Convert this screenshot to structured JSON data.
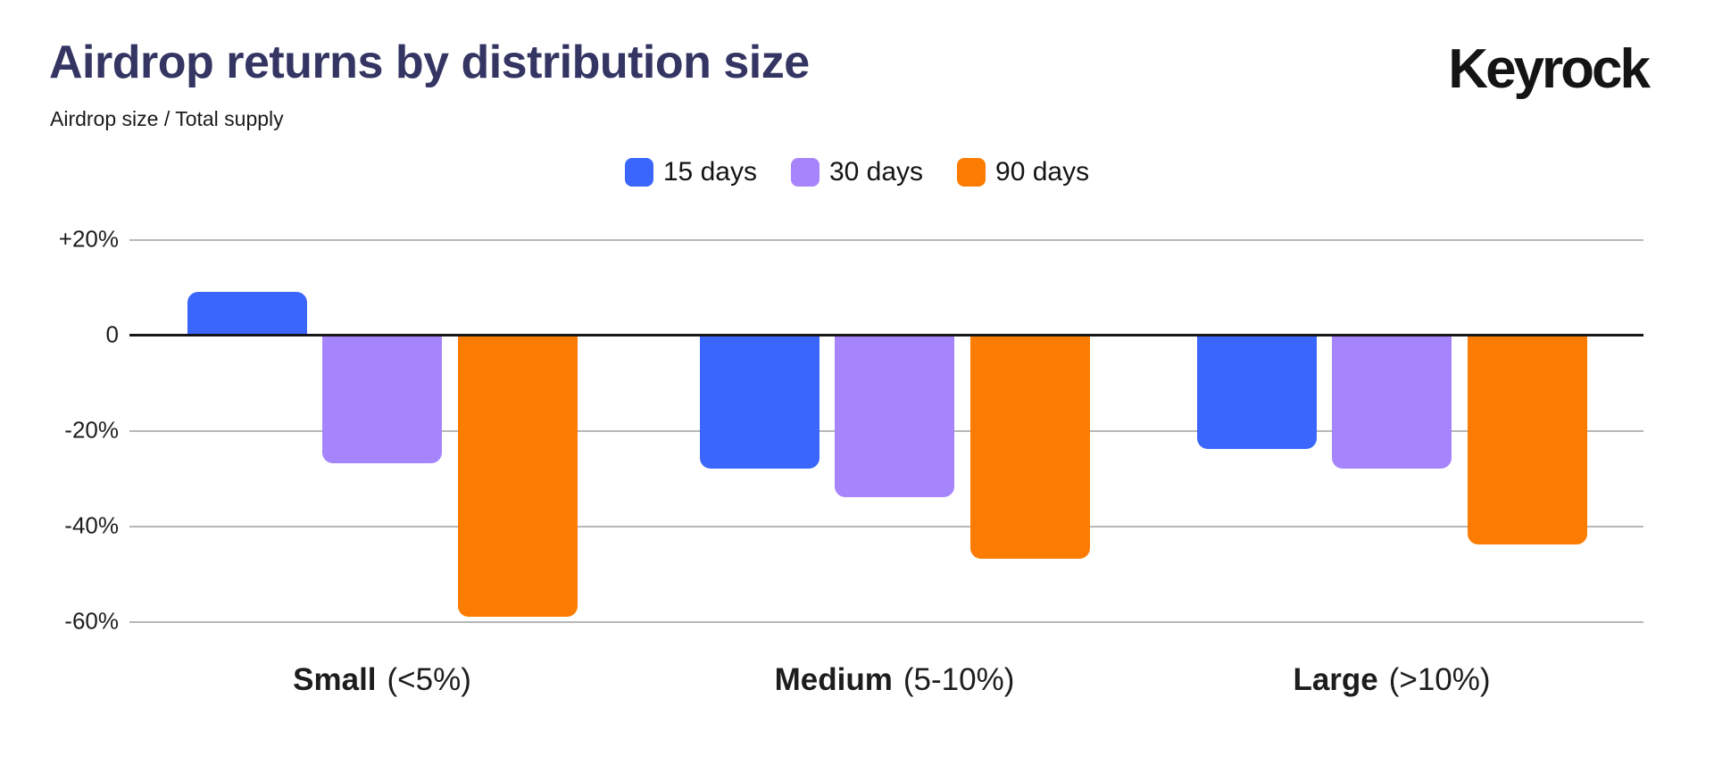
{
  "header": {
    "title": "Airdrop returns by distribution size",
    "subtitle": "Airdrop size / Total supply",
    "logo": "Keyrock"
  },
  "style": {
    "title_color": "#343563",
    "text_color": "#1A1A1A",
    "grid_color": "#B7B7B7",
    "axis_color": "#15151A",
    "background": "#FFFFFF"
  },
  "chart_data": {
    "type": "bar",
    "title": "Airdrop returns by distribution size",
    "subtitle": "Airdrop size / Total supply",
    "unit": "%",
    "categories": [
      {
        "name": "Small",
        "range": "(<5%)"
      },
      {
        "name": "Medium",
        "range": "(5-10%)"
      },
      {
        "name": "Large",
        "range": "(>10%)"
      }
    ],
    "series": [
      {
        "name": "15 days",
        "color": "#3A66FB",
        "values": [
          9,
          -28,
          -24
        ]
      },
      {
        "name": "30 days",
        "color": "#A684FC",
        "values": [
          -27,
          -34,
          -28
        ]
      },
      {
        "name": "90 days",
        "color": "#FB7C00",
        "values": [
          -59,
          -47,
          -44
        ]
      }
    ],
    "ylim": [
      -60,
      20
    ],
    "yticks": [
      {
        "label": "+20%",
        "value": 20
      },
      {
        "label": "0",
        "value": 0
      },
      {
        "label": "-20%",
        "value": -20
      },
      {
        "label": "-40%",
        "value": -40
      },
      {
        "label": "-60%",
        "value": -60
      }
    ],
    "grid": "horizontal",
    "legend_position": "top-center",
    "zero_line": true
  }
}
